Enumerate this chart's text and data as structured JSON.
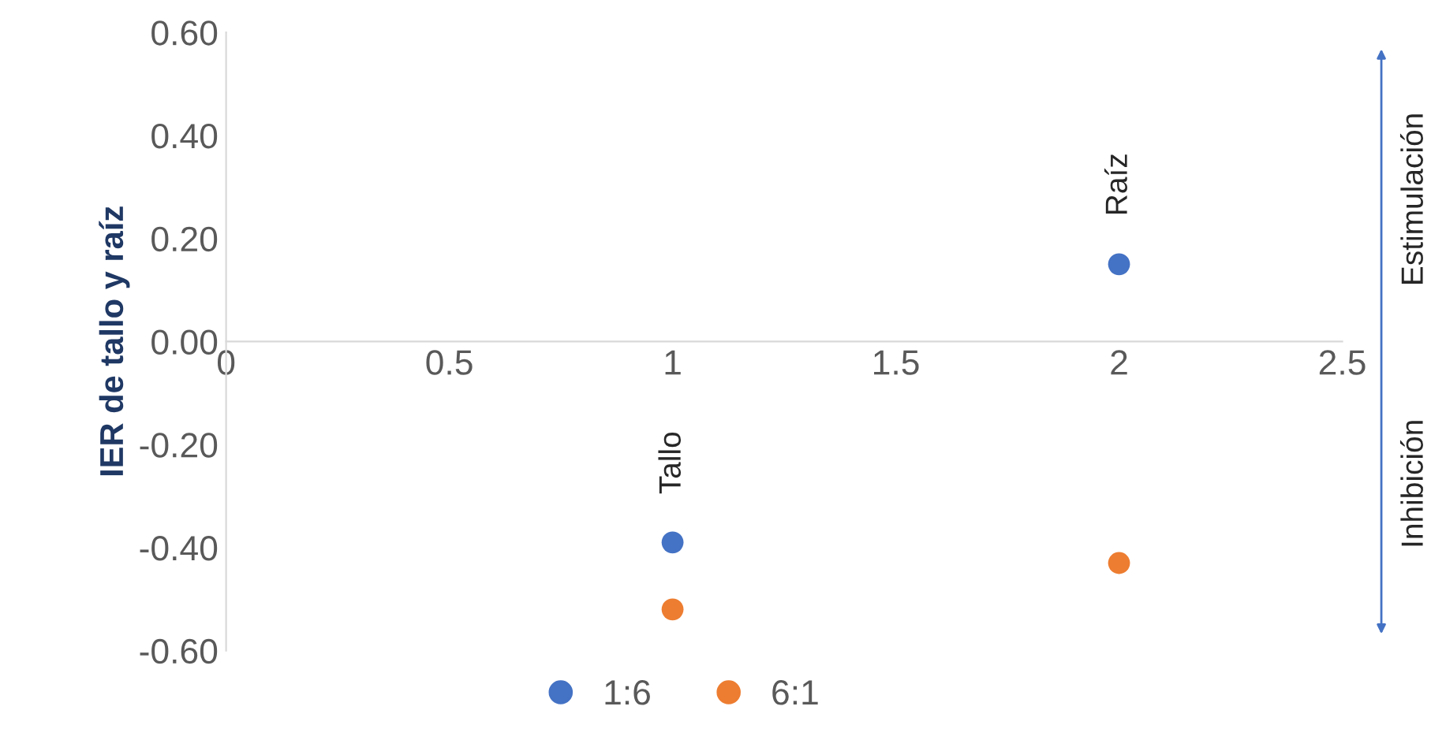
{
  "chart_data": {
    "type": "scatter",
    "ylabel": "IER de tallo y raíz",
    "series": [
      {
        "name": "1:6",
        "color": "#4472c4",
        "values": [
          -0.39,
          0.15
        ]
      },
      {
        "name": "6:1",
        "color": "#ed7d31",
        "values": [
          -0.52,
          -0.43
        ]
      }
    ],
    "x": [
      1,
      2
    ],
    "xlim": [
      0,
      2.5
    ],
    "xticks": [
      0,
      0.5,
      1,
      1.5,
      2,
      2.5
    ],
    "ylim": [
      -0.6,
      0.6
    ],
    "yticks": [
      {
        "value": -0.6,
        "label": "-0.60"
      },
      {
        "value": -0.4,
        "label": "-0.40"
      },
      {
        "value": -0.2,
        "label": "-0.20"
      },
      {
        "value": 0,
        "label": "0.00"
      },
      {
        "value": 0.2,
        "label": "0.20"
      },
      {
        "value": 0.4,
        "label": "0.40"
      },
      {
        "value": 0.6,
        "label": "0.60"
      }
    ],
    "annotations": [
      {
        "text": "Tallo",
        "x": 1,
        "y": -0.39
      },
      {
        "text": "Raíz",
        "x": 2,
        "y": 0.15
      },
      "Estimulación",
      "Inhibición"
    ],
    "marker": "circle",
    "grid": false,
    "legend": "bottom"
  }
}
